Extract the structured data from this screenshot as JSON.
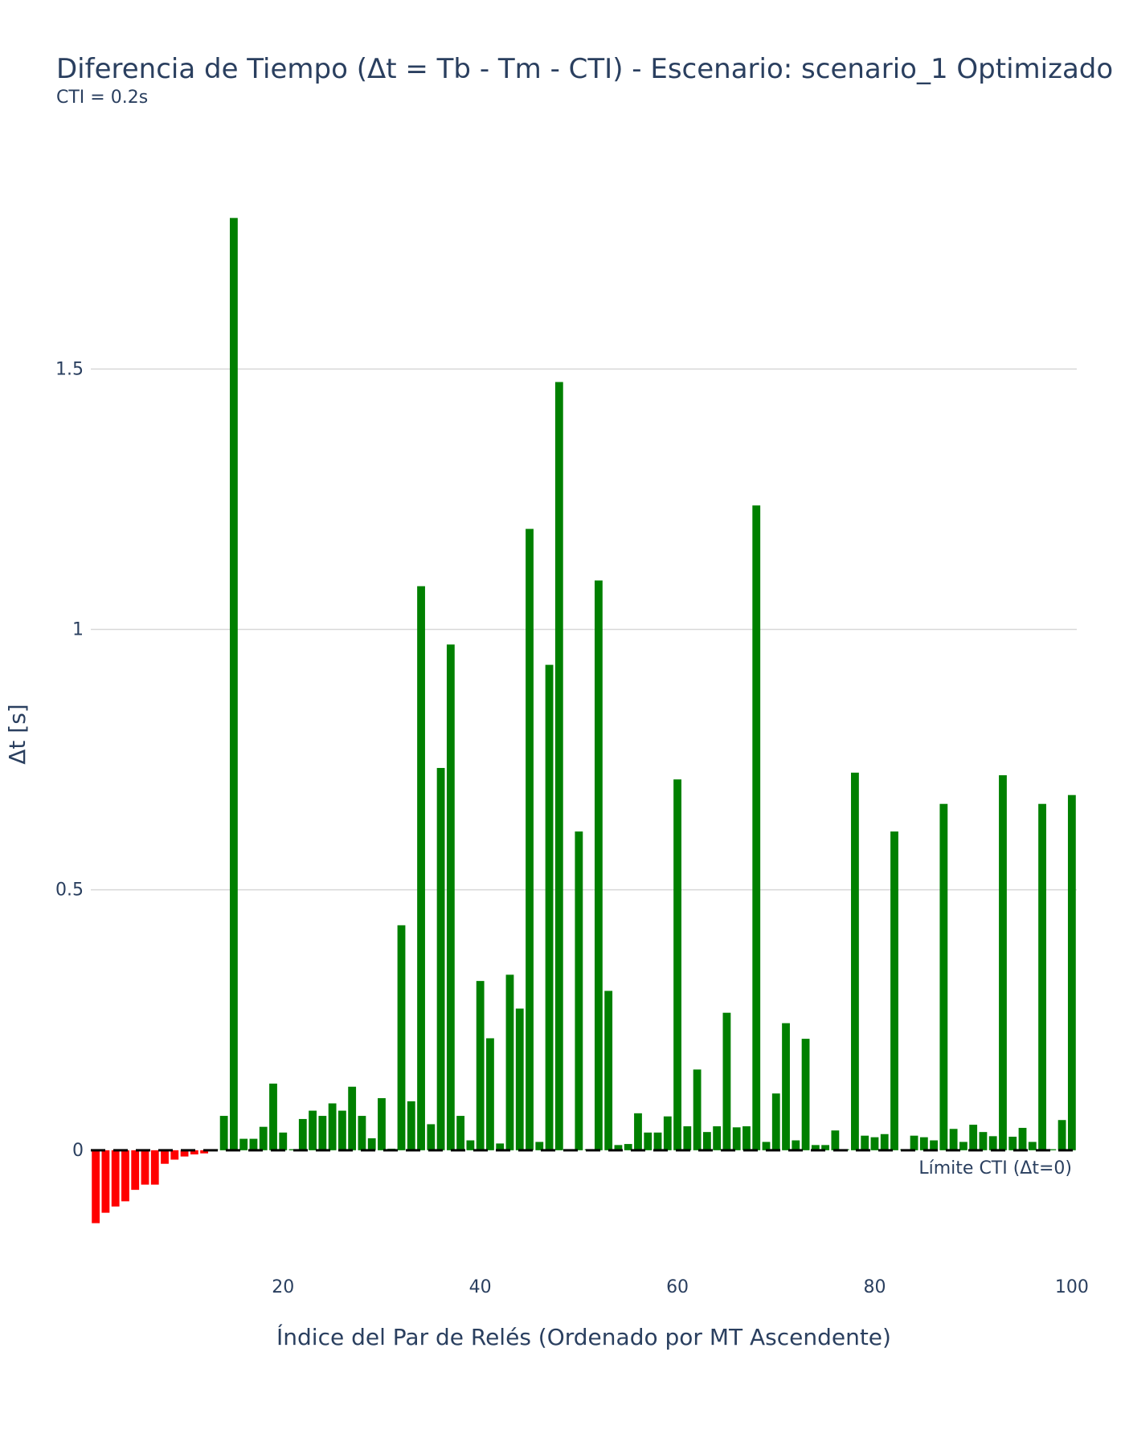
{
  "title": "Diferencia de Tiempo (Δt = Tb - Tm - CTI) - Escenario: scenario_1 Optimizado",
  "subtitle": "CTI = 0.2s",
  "chart_data": {
    "type": "bar",
    "title": "Diferencia de Tiempo (Δt = Tb - Tm - CTI) - Escenario: scenario_1 Optimizado",
    "subtitle": "CTI = 0.2s",
    "xlabel": "Índice del Par de Relés (Ordenado por MT Ascendente)",
    "ylabel": "Δt [s]",
    "xlim": [
      0.5,
      100.5
    ],
    "ylim": [
      -0.21,
      1.9
    ],
    "xticks": [
      20,
      40,
      60,
      80,
      100
    ],
    "xtick_labels": [
      "20",
      "40",
      "60",
      "80",
      "100"
    ],
    "yticks": [
      0,
      0.5,
      1,
      1.5
    ],
    "ytick_labels": [
      "0",
      "0.5",
      "1",
      "1.5"
    ],
    "grid": true,
    "reference_line": {
      "y": 0,
      "label": "Límite CTI (Δt=0)",
      "color": "#000000",
      "style": "dashed"
    },
    "colors": {
      "negative": "#ff0000",
      "positive": "#008000",
      "grid": "#d8d8d8",
      "text": "#2a3f5f"
    },
    "x": [
      1,
      2,
      3,
      4,
      5,
      6,
      7,
      8,
      9,
      10,
      11,
      12,
      13,
      14,
      15,
      16,
      17,
      18,
      19,
      20,
      21,
      22,
      23,
      24,
      25,
      26,
      27,
      28,
      29,
      30,
      31,
      32,
      33,
      34,
      35,
      36,
      37,
      38,
      39,
      40,
      41,
      42,
      43,
      44,
      45,
      46,
      47,
      48,
      49,
      50,
      51,
      52,
      53,
      54,
      55,
      56,
      57,
      58,
      59,
      60,
      61,
      62,
      63,
      64,
      65,
      66,
      67,
      68,
      69,
      70,
      71,
      72,
      73,
      74,
      75,
      76,
      77,
      78,
      79,
      80,
      81,
      82,
      83,
      84,
      85,
      86,
      87,
      88,
      89,
      90,
      91,
      92,
      93,
      94,
      95,
      96,
      97,
      98,
      99,
      100
    ],
    "values": [
      -0.14,
      -0.12,
      -0.108,
      -0.098,
      -0.076,
      -0.066,
      -0.066,
      -0.026,
      -0.018,
      -0.012,
      -0.008,
      -0.006,
      0.002,
      0.066,
      1.79,
      0.022,
      0.022,
      0.045,
      0.128,
      0.034,
      0.002,
      0.06,
      0.076,
      0.066,
      0.09,
      0.076,
      0.122,
      0.066,
      0.023,
      0.1,
      0.003,
      0.432,
      0.094,
      1.083,
      0.05,
      0.734,
      0.971,
      0.066,
      0.019,
      0.325,
      0.215,
      0.013,
      0.337,
      0.272,
      1.193,
      0.016,
      0.932,
      1.475,
      0.002,
      0.612,
      0.002,
      1.094,
      0.306,
      0.01,
      0.012,
      0.071,
      0.034,
      0.034,
      0.065,
      0.712,
      0.046,
      0.155,
      0.035,
      0.046,
      0.264,
      0.044,
      0.046,
      1.238,
      0.016,
      0.109,
      0.244,
      0.019,
      0.214,
      0.01,
      0.01,
      0.038,
      0.002,
      0.725,
      0.028,
      0.025,
      0.031,
      0.612,
      0.002,
      0.028,
      0.025,
      0.019,
      0.665,
      0.041,
      0.016,
      0.049,
      0.035,
      0.027,
      0.72,
      0.026,
      0.043,
      0.016,
      0.665,
      0.002,
      0.058,
      0.682
    ]
  }
}
